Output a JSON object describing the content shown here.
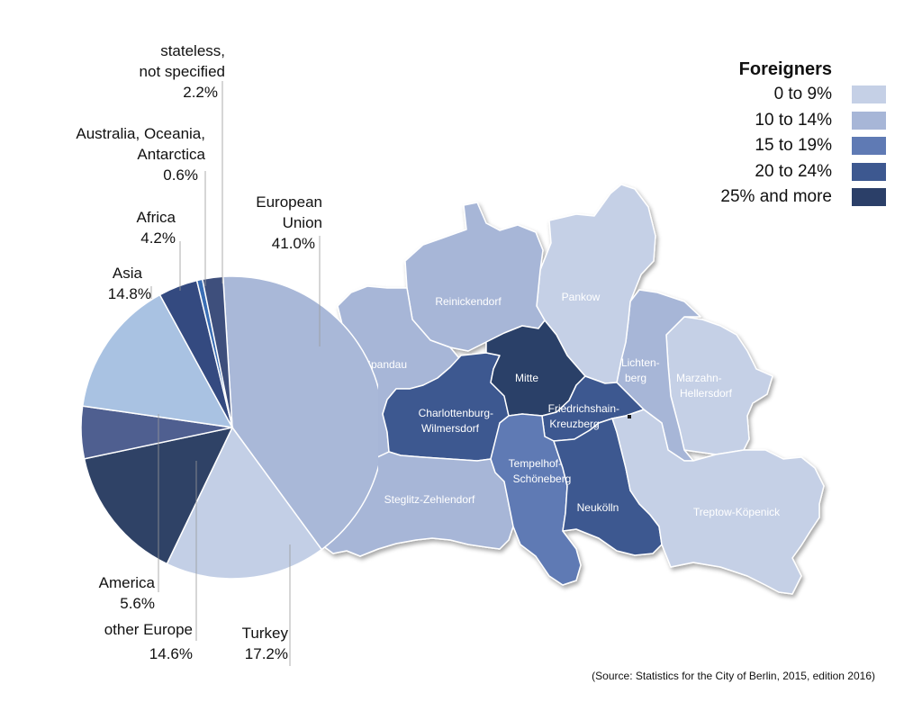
{
  "legend": {
    "title": "Foreigners",
    "items": [
      {
        "label": "0 to 9%",
        "color": "#c5d0e6"
      },
      {
        "label": "10 to 14%",
        "color": "#a7b6d7"
      },
      {
        "label": "15 to 19%",
        "color": "#5f7ab4"
      },
      {
        "label": "20 to 24%",
        "color": "#3d5890"
      },
      {
        "label": "25% and more",
        "color": "#2b3f68"
      }
    ]
  },
  "districts": [
    {
      "name": "Spandau",
      "class": "10 to 14%",
      "color": "#a7b6d7"
    },
    {
      "name": "Reinickendorf",
      "class": "10 to 14%",
      "color": "#a7b6d7"
    },
    {
      "name": "Pankow",
      "class": "0 to 9%",
      "color": "#c5d0e6"
    },
    {
      "name": "Mitte",
      "class": "25% and more",
      "color": "#2b3f68"
    },
    {
      "name": "Charlottenburg-Wilmersdorf",
      "class": "20 to 24%",
      "color": "#3d5890"
    },
    {
      "name": "Friedrichshain-Kreuzberg",
      "class": "20 to 24%",
      "color": "#3d5890"
    },
    {
      "name": "Lichtenberg",
      "class": "10 to 14%",
      "color": "#a7b6d7"
    },
    {
      "name": "Marzahn-Hellersdorf",
      "class": "0 to 9%",
      "color": "#c5d0e6"
    },
    {
      "name": "Steglitz-Zehlendorf",
      "class": "10 to 14%",
      "color": "#a7b6d7"
    },
    {
      "name": "Tempelhof-Schöneberg",
      "class": "15 to 19%",
      "color": "#5f7ab4"
    },
    {
      "name": "Neukölln",
      "class": "20 to 24%",
      "color": "#3d5890"
    },
    {
      "name": "Treptow-Köpenick",
      "class": "0 to 9%",
      "color": "#c5d0e6"
    }
  ],
  "district_labels": {
    "spandau": "Spandau",
    "reinickendorf": "Reinickendorf",
    "pankow": "Pankow",
    "mitte": "Mitte",
    "charlottenburg": [
      "Charlottenburg-",
      "Wilmersdorf"
    ],
    "friedrichshain": [
      "Friedrichshain-",
      "Kreuzberg"
    ],
    "lichtenberg": [
      "Lichten-",
      "berg"
    ],
    "marzahn": [
      "Marzahn-",
      "Hellersdorf"
    ],
    "steglitz": "Steglitz-Zehlendorf",
    "tempelhof": [
      "Tempelhof-",
      "Schöneberg"
    ],
    "neukoelln": "Neukölln",
    "treptow": "Treptow-Köpenick"
  },
  "pie": {
    "slices": [
      {
        "key": "eu",
        "label": [
          "European",
          "Union"
        ],
        "pct": "41.0%",
        "value": 41.0,
        "color": "#a9b8d8"
      },
      {
        "key": "turkey",
        "label": [
          "Turkey"
        ],
        "pct": "17.2%",
        "value": 17.2,
        "color": "#c3cfe6"
      },
      {
        "key": "other_europe",
        "label": [
          "other Europe"
        ],
        "pct": "14.6%",
        "value": 14.6,
        "color": "#2f4266"
      },
      {
        "key": "america",
        "label": [
          "America"
        ],
        "pct": "5.6%",
        "value": 5.6,
        "color": "#4f5f90"
      },
      {
        "key": "asia",
        "label": [
          "Asia"
        ],
        "pct": "14.8%",
        "value": 14.8,
        "color": "#a9c2e2"
      },
      {
        "key": "africa",
        "label": [
          "Africa"
        ],
        "pct": "4.2%",
        "value": 4.2,
        "color": "#344a80"
      },
      {
        "key": "australia",
        "label": [
          "Australia, Oceania,",
          "Antarctica"
        ],
        "pct": "0.6%",
        "value": 0.6,
        "color": "#3a6eb5"
      },
      {
        "key": "stateless",
        "label": [
          "stateless,",
          "not specified"
        ],
        "pct": "2.2%",
        "value": 2.2,
        "color": "#3e4f7c"
      }
    ]
  },
  "source": "(Source: Statistics for the City of Berlin, 2015, edition 2016)"
}
